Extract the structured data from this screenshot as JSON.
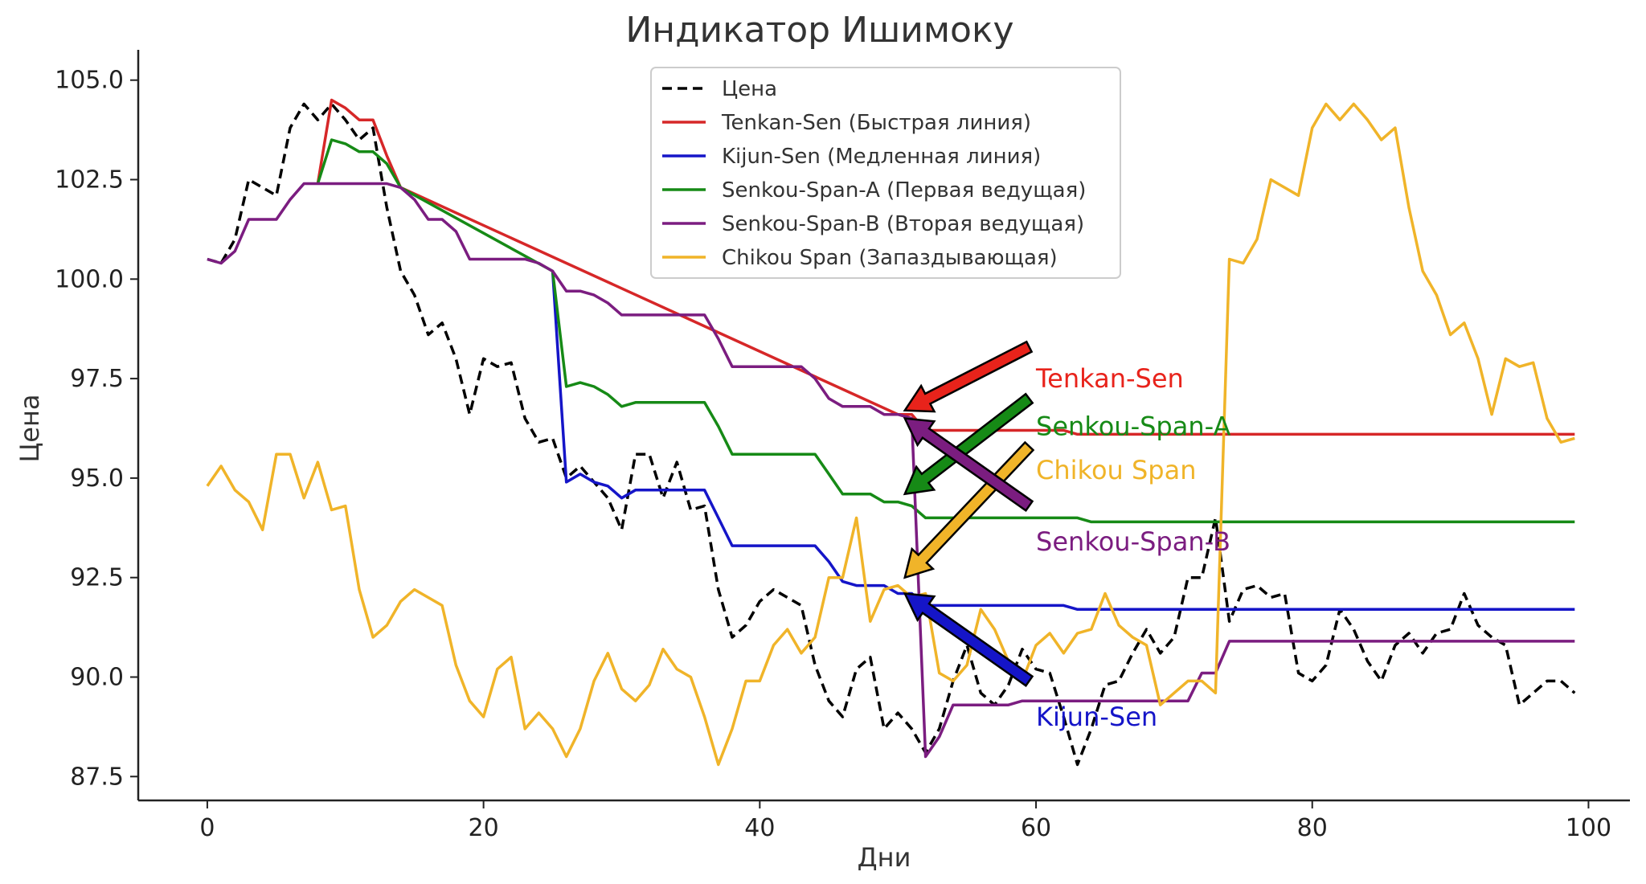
{
  "chart_data": {
    "type": "line",
    "title": "Индикатор Ишимоку",
    "xlabel": "Дни",
    "ylabel": "Цена",
    "xlim": [
      -5,
      103
    ],
    "ylim": [
      86.9,
      105.6
    ],
    "xticks": [
      "0",
      "20",
      "40",
      "60",
      "80",
      "100"
    ],
    "yticks": [
      "87.5",
      "90.0",
      "92.5",
      "95.0",
      "97.5",
      "100.0",
      "102.5",
      "105.0"
    ],
    "grid": false,
    "legend_position": "top-center",
    "series": [
      {
        "name": "Цена",
        "color": "#000000",
        "style": "dashed",
        "x": [
          0,
          1,
          2,
          3,
          4,
          5,
          6,
          7,
          8,
          9,
          10,
          11,
          12,
          13,
          14,
          15,
          16,
          17,
          18,
          19,
          20,
          21,
          22,
          23,
          24,
          25,
          26,
          27,
          28,
          29,
          30,
          31,
          32,
          33,
          34,
          35,
          36,
          37,
          38,
          39,
          40,
          41,
          42,
          43,
          44,
          45,
          46,
          47,
          48,
          49,
          50,
          51,
          52,
          53,
          54,
          55,
          56,
          57,
          58,
          59,
          60,
          61,
          62,
          63,
          64,
          65,
          66,
          67,
          68,
          69,
          70,
          71,
          72,
          73,
          74,
          75,
          76,
          77,
          78,
          79,
          80,
          81,
          82,
          83,
          84,
          85,
          86,
          87,
          88,
          89,
          90,
          91,
          92,
          93,
          94,
          95,
          96,
          97,
          98,
          99
        ],
        "y": [
          100.5,
          100.4,
          101.0,
          102.5,
          102.3,
          102.1,
          103.8,
          104.4,
          104.0,
          104.4,
          104.0,
          103.5,
          103.8,
          101.8,
          100.2,
          99.6,
          98.6,
          98.9,
          98.0,
          96.6,
          98.0,
          97.8,
          97.9,
          96.5,
          95.9,
          96.0,
          95.0,
          95.3,
          94.9,
          94.5,
          93.7,
          95.6,
          95.6,
          94.5,
          95.4,
          94.2,
          94.3,
          92.2,
          91.0,
          91.3,
          91.9,
          92.2,
          92.0,
          91.8,
          90.3,
          89.4,
          89.0,
          90.2,
          90.5,
          88.7,
          89.1,
          88.7,
          88.1,
          88.7,
          89.9,
          90.8,
          89.6,
          89.3,
          89.8,
          90.7,
          90.2,
          90.1,
          89.0,
          87.8,
          88.7,
          89.8,
          89.9,
          90.6,
          91.2,
          90.6,
          91.0,
          92.5,
          92.5,
          94.0,
          91.4,
          92.2,
          92.3,
          92.0,
          92.1,
          90.1,
          89.9,
          90.3,
          91.7,
          91.2,
          90.4,
          89.9,
          90.8,
          91.1,
          90.6,
          91.1,
          91.2,
          92.1,
          91.3,
          91.0,
          90.8,
          89.3,
          89.6,
          89.9,
          89.9,
          89.6
        ]
      },
      {
        "name": "Tenkan-Sen (Быстрая линия)",
        "color": "#d62728",
        "style": "solid",
        "x": [
          8,
          9,
          10,
          11,
          12,
          13,
          14,
          50,
          51,
          52,
          53,
          54,
          55,
          56,
          57,
          58,
          59,
          60,
          61,
          62,
          63,
          64,
          65,
          66,
          67,
          68,
          69,
          70,
          71,
          72,
          73,
          74,
          75,
          76,
          77,
          78,
          79,
          80,
          81,
          82,
          83,
          84,
          85,
          86,
          87,
          88,
          89,
          90,
          91,
          92,
          93,
          94,
          95,
          96,
          97,
          98,
          99
        ],
        "y": [
          102.4,
          104.5,
          104.3,
          104.0,
          104.0,
          103.1,
          102.3,
          96.6,
          96.6,
          96.2,
          96.2,
          96.2,
          96.2,
          96.2,
          96.2,
          96.2,
          96.2,
          96.2,
          96.2,
          96.2,
          96.1,
          96.1,
          96.1,
          96.1,
          96.1,
          96.1,
          96.1,
          96.1,
          96.1,
          96.1,
          96.1,
          96.1,
          96.1,
          96.1,
          96.1,
          96.1,
          96.1,
          96.1,
          96.1,
          96.1,
          96.1,
          96.1,
          96.1,
          96.1,
          96.1,
          96.1,
          96.1,
          96.1,
          96.1,
          96.1,
          96.1,
          96.1,
          96.1,
          96.1,
          96.1,
          96.1,
          96.1
        ]
      },
      {
        "name": "Kijun-Sen (Медленная линия)",
        "color": "#1515c8",
        "style": "solid",
        "x": [
          25,
          26,
          27,
          28,
          29,
          30,
          31,
          32,
          33,
          34,
          35,
          36,
          37,
          38,
          39,
          40,
          41,
          42,
          43,
          44,
          45,
          46,
          47,
          48,
          49,
          50,
          51,
          52,
          53,
          54,
          55,
          56,
          57,
          58,
          59,
          60,
          61,
          62,
          63,
          64,
          65,
          66,
          67,
          68,
          69,
          70,
          71,
          72,
          73,
          74,
          75,
          76,
          77,
          78,
          79,
          80,
          81,
          82,
          83,
          84,
          85,
          86,
          87,
          88,
          89,
          90,
          91,
          92,
          93,
          94,
          95,
          96,
          97,
          98,
          99
        ],
        "y": [
          100.2,
          94.9,
          95.1,
          94.9,
          94.8,
          94.5,
          94.7,
          94.7,
          94.7,
          94.7,
          94.7,
          94.7,
          94.0,
          93.3,
          93.3,
          93.3,
          93.3,
          93.3,
          93.3,
          93.3,
          92.9,
          92.4,
          92.3,
          92.3,
          92.3,
          92.1,
          92.1,
          91.8,
          91.8,
          91.8,
          91.8,
          91.8,
          91.8,
          91.8,
          91.8,
          91.8,
          91.8,
          91.8,
          91.7,
          91.7,
          91.7,
          91.7,
          91.7,
          91.7,
          91.7,
          91.7,
          91.7,
          91.7,
          91.7,
          91.7,
          91.7,
          91.7,
          91.7,
          91.7,
          91.7,
          91.7,
          91.7,
          91.7,
          91.7,
          91.7,
          91.7,
          91.7,
          91.7,
          91.7,
          91.7,
          91.7,
          91.7,
          91.7,
          91.7,
          91.7,
          91.7,
          91.7,
          91.7,
          91.7,
          91.7
        ]
      },
      {
        "name": "Senkou-Span-A (Первая ведущая)",
        "color": "#168a16",
        "style": "solid",
        "x": [
          8,
          9,
          10,
          11,
          12,
          13,
          14,
          25,
          26,
          27,
          28,
          29,
          30,
          31,
          32,
          33,
          34,
          35,
          36,
          37,
          38,
          39,
          40,
          41,
          42,
          43,
          44,
          45,
          46,
          47,
          48,
          49,
          50,
          51,
          52,
          53,
          54,
          55,
          56,
          57,
          58,
          59,
          60,
          61,
          62,
          63,
          64,
          65,
          66,
          67,
          68,
          69,
          70,
          71,
          72,
          73,
          74,
          75,
          76,
          77,
          78,
          79,
          80,
          81,
          82,
          83,
          84,
          85,
          86,
          87,
          88,
          89,
          90,
          91,
          92,
          93,
          94,
          95,
          96,
          97,
          98,
          99
        ],
        "y": [
          102.4,
          103.5,
          103.4,
          103.2,
          103.2,
          102.9,
          102.3,
          100.2,
          97.3,
          97.4,
          97.3,
          97.1,
          96.8,
          96.9,
          96.9,
          96.9,
          96.9,
          96.9,
          96.9,
          96.3,
          95.6,
          95.6,
          95.6,
          95.6,
          95.6,
          95.6,
          95.6,
          95.1,
          94.6,
          94.6,
          94.6,
          94.4,
          94.4,
          94.3,
          94.0,
          94.0,
          94.0,
          94.0,
          94.0,
          94.0,
          94.0,
          94.0,
          94.0,
          94.0,
          94.0,
          94.0,
          93.9,
          93.9,
          93.9,
          93.9,
          93.9,
          93.9,
          93.9,
          93.9,
          93.9,
          93.9,
          93.9,
          93.9,
          93.9,
          93.9,
          93.9,
          93.9,
          93.9,
          93.9,
          93.9,
          93.9,
          93.9,
          93.9,
          93.9,
          93.9,
          93.9,
          93.9,
          93.9,
          93.9,
          93.9,
          93.9,
          93.9,
          93.9,
          93.9,
          93.9,
          93.9,
          93.9
        ]
      },
      {
        "name": "Senkou-Span-B (Вторая ведущая)",
        "color": "#7b1d80",
        "style": "solid",
        "x": [
          0,
          1,
          2,
          3,
          4,
          5,
          6,
          7,
          8,
          9,
          10,
          11,
          12,
          13,
          14,
          15,
          16,
          17,
          18,
          19,
          20,
          21,
          22,
          23,
          24,
          25,
          26,
          27,
          28,
          29,
          30,
          31,
          32,
          33,
          34,
          35,
          36,
          37,
          38,
          39,
          40,
          41,
          42,
          43,
          44,
          45,
          46,
          47,
          48,
          49,
          50,
          51,
          52,
          53,
          54,
          55,
          56,
          57,
          58,
          59,
          60,
          61,
          62,
          63,
          64,
          65,
          66,
          67,
          68,
          69,
          70,
          71,
          72,
          73,
          74,
          75,
          76,
          77,
          78,
          79,
          80,
          81,
          82,
          83,
          84,
          85,
          86,
          87,
          88,
          89,
          90,
          91,
          92,
          93,
          94,
          95,
          96,
          97,
          98,
          99
        ],
        "y": [
          100.5,
          100.4,
          100.7,
          101.5,
          101.5,
          101.5,
          102.0,
          102.4,
          102.4,
          102.4,
          102.4,
          102.4,
          102.4,
          102.4,
          102.3,
          102.0,
          101.5,
          101.5,
          101.2,
          100.5,
          100.5,
          100.5,
          100.5,
          100.5,
          100.4,
          100.2,
          99.7,
          99.7,
          99.6,
          99.4,
          99.1,
          99.1,
          99.1,
          99.1,
          99.1,
          99.1,
          99.1,
          98.5,
          97.8,
          97.8,
          97.8,
          97.8,
          97.8,
          97.8,
          97.5,
          97.0,
          96.8,
          96.8,
          96.8,
          96.6,
          96.6,
          96.5,
          88.0,
          88.5,
          89.3,
          89.3,
          89.3,
          89.3,
          89.3,
          89.4,
          89.4,
          89.4,
          89.4,
          89.4,
          89.4,
          89.4,
          89.4,
          89.4,
          89.4,
          89.4,
          89.4,
          89.4,
          90.1,
          90.1,
          90.9,
          90.9,
          90.9,
          90.9,
          90.9,
          90.9,
          90.9,
          90.9,
          90.9,
          90.9,
          90.9,
          90.9,
          90.9,
          90.9,
          90.9,
          90.9,
          90.9,
          90.9,
          90.9,
          90.9,
          90.9,
          90.9,
          90.9,
          90.9,
          90.9,
          90.9
        ]
      },
      {
        "name": "Chikou Span (Запаздывающая)",
        "color": "#f0b429",
        "style": "solid",
        "x": [
          0,
          1,
          2,
          3,
          4,
          5,
          6,
          7,
          8,
          9,
          10,
          11,
          12,
          13,
          14,
          15,
          16,
          17,
          18,
          19,
          20,
          21,
          22,
          23,
          24,
          25,
          26,
          27,
          28,
          29,
          30,
          31,
          32,
          33,
          34,
          35,
          36,
          37,
          38,
          39,
          40,
          41,
          42,
          43,
          44,
          45,
          46,
          47,
          48,
          49,
          50,
          51,
          52,
          53,
          54,
          55,
          56,
          57,
          58,
          59,
          60,
          61,
          62,
          63,
          64,
          65,
          66,
          67,
          68,
          69,
          70,
          71,
          72,
          73,
          74,
          75,
          76,
          77,
          78,
          79,
          80,
          81,
          82,
          83,
          84,
          85,
          86,
          87,
          88,
          89,
          90,
          91,
          92,
          93,
          94,
          95,
          96,
          97,
          98,
          99
        ],
        "y": [
          94.8,
          95.3,
          94.7,
          94.4,
          93.7,
          95.6,
          95.6,
          94.5,
          95.4,
          94.2,
          94.3,
          92.2,
          91.0,
          91.3,
          91.9,
          92.2,
          92.0,
          91.8,
          90.3,
          89.4,
          89.0,
          90.2,
          90.5,
          88.7,
          89.1,
          88.7,
          88.0,
          88.7,
          89.9,
          90.6,
          89.7,
          89.4,
          89.8,
          90.7,
          90.2,
          90.0,
          89.0,
          87.8,
          88.7,
          89.9,
          89.9,
          90.8,
          91.2,
          90.6,
          91.0,
          92.5,
          92.5,
          94.0,
          91.4,
          92.2,
          92.3,
          92.0,
          92.1,
          90.1,
          89.9,
          90.3,
          91.7,
          91.2,
          90.4,
          89.9,
          90.8,
          91.1,
          90.6,
          91.1,
          91.2,
          92.1,
          91.3,
          91.0,
          90.8,
          89.3,
          89.6,
          89.9,
          89.9,
          89.6,
          100.5,
          100.4,
          101.0,
          102.5,
          102.3,
          102.1,
          103.8,
          104.4,
          104.0,
          104.4,
          104.0,
          103.5,
          103.8,
          101.8,
          100.2,
          99.6,
          98.6,
          98.9,
          98.0,
          96.6,
          98.0,
          97.8,
          97.9,
          96.5,
          95.9,
          96.0
        ]
      }
    ],
    "annotations": [
      {
        "text": "Tenkan-Sen",
        "color": "#e8231b",
        "text_x": 60,
        "text_y": 97.5,
        "head_x": 50.5,
        "head_y": 96.7,
        "tail_x": 59.5,
        "tail_y": 98.3
      },
      {
        "text": "Senkou-Span-A",
        "color": "#168a16",
        "text_x": 60,
        "text_y": 96.3,
        "head_x": 50.5,
        "head_y": 94.6,
        "tail_x": 59.5,
        "tail_y": 97.0
      },
      {
        "text": "Chikou Span",
        "color": "#f0b429",
        "text_x": 60,
        "text_y": 95.2,
        "head_x": 50.5,
        "head_y": 92.5,
        "tail_x": 59.5,
        "tail_y": 95.8
      },
      {
        "text": "Senkou-Span-B",
        "color": "#7b1d80",
        "text_x": 60,
        "text_y": 93.4,
        "head_x": 50.5,
        "head_y": 96.5,
        "tail_x": 59.5,
        "tail_y": 94.3
      },
      {
        "text": "Kijun-Sen",
        "color": "#1515c8",
        "text_x": 60,
        "text_y": 89.0,
        "head_x": 50.5,
        "head_y": 92.1,
        "tail_x": 59.5,
        "tail_y": 89.9
      }
    ]
  }
}
